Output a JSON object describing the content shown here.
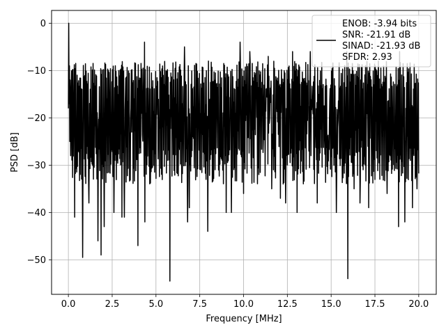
{
  "chart_data": {
    "type": "line",
    "title": "",
    "xlabel": "Frequency [MHz]",
    "ylabel": "PSD [dB]",
    "xlim": [
      -0.96,
      21.0
    ],
    "ylim": [
      -57.3,
      2.7
    ],
    "grid": true,
    "legend_position": "top-right",
    "series_color": "#000000",
    "x_ticks": [
      0.0,
      2.5,
      5.0,
      7.5,
      10.0,
      12.5,
      15.0,
      17.5,
      20.0
    ],
    "x_tick_labels": [
      "0.0",
      "2.5",
      "5.0",
      "7.5",
      "10.0",
      "12.5",
      "15.0",
      "17.5",
      "20.0"
    ],
    "y_ticks": [
      0,
      -10,
      -20,
      -30,
      -40,
      -50
    ],
    "y_tick_labels": [
      "0",
      "−10",
      "−20",
      "−30",
      "−40",
      "−50"
    ],
    "legend": {
      "entries": [
        "ENOB: -3.94 bits",
        "SNR: -21.91 dB",
        "SINAD: -21.93 dB",
        "SFDR: 2.93"
      ]
    },
    "series": [
      {
        "x_range": [
          0.0,
          20.0
        ],
        "points": 1000,
        "initial_peak": [
          [
            0.0,
            -18
          ],
          [
            0.02,
            0
          ],
          [
            0.04,
            -17
          ],
          [
            0.06,
            -9
          ],
          [
            0.08,
            -25
          ],
          [
            0.1,
            -12
          ],
          [
            0.13,
            -28
          ],
          [
            0.16,
            -14
          ]
        ],
        "noise_floor": -20,
        "top_band": [
          -14,
          -8
        ],
        "bottom_band": [
          -34,
          -26
        ],
        "spikes_up": [
          [
            2.68,
            -9
          ],
          [
            2.87,
            -10
          ],
          [
            4.35,
            -4
          ],
          [
            6.62,
            -5
          ],
          [
            6.85,
            -9
          ],
          [
            8.0,
            -8
          ],
          [
            9.8,
            -4
          ],
          [
            10.35,
            -6
          ],
          [
            11.4,
            -7
          ],
          [
            12.8,
            -6
          ],
          [
            13.8,
            -6
          ],
          [
            15.9,
            -6
          ],
          [
            17.7,
            -8
          ],
          [
            18.9,
            -6
          ]
        ],
        "spikes_down": [
          [
            0.35,
            -41
          ],
          [
            0.82,
            -49.5
          ],
          [
            1.18,
            -38
          ],
          [
            1.68,
            -46
          ],
          [
            1.86,
            -49
          ],
          [
            2.05,
            -43
          ],
          [
            2.6,
            -40
          ],
          [
            3.05,
            -41
          ],
          [
            3.2,
            -41
          ],
          [
            3.96,
            -47
          ],
          [
            4.36,
            -42
          ],
          [
            5.8,
            -54.5
          ],
          [
            6.8,
            -42
          ],
          [
            6.9,
            -39
          ],
          [
            7.95,
            -44
          ],
          [
            9.0,
            -40
          ],
          [
            9.3,
            -40
          ],
          [
            10.0,
            -36
          ],
          [
            11.6,
            -35
          ],
          [
            12.1,
            -37
          ],
          [
            12.4,
            -38
          ],
          [
            13.05,
            -40
          ],
          [
            14.2,
            -38
          ],
          [
            15.3,
            -40
          ],
          [
            15.95,
            -54
          ],
          [
            16.3,
            -35
          ],
          [
            16.65,
            -38
          ],
          [
            17.15,
            -39
          ],
          [
            18.2,
            -36
          ],
          [
            18.85,
            -43
          ],
          [
            19.2,
            -42
          ],
          [
            19.65,
            -39
          ],
          [
            19.9,
            -35
          ]
        ]
      }
    ]
  }
}
